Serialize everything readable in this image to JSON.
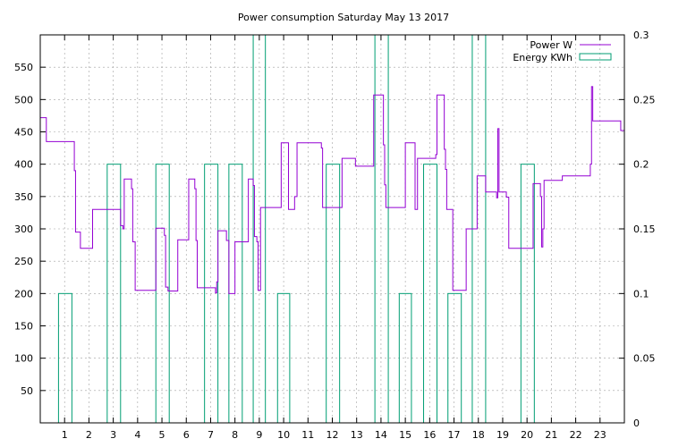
{
  "chart_data": {
    "type": "line",
    "title": "Power consumption Saturday May 13 2017",
    "xlabel": "",
    "ylabel": "",
    "y2label": "",
    "xlim": [
      0,
      24
    ],
    "ylim": [
      0,
      600
    ],
    "y2lim": [
      0,
      0.3
    ],
    "x_ticks": [
      1,
      2,
      3,
      4,
      5,
      6,
      7,
      8,
      9,
      10,
      11,
      12,
      13,
      14,
      15,
      16,
      17,
      18,
      19,
      20,
      21,
      22,
      23
    ],
    "y_ticks": [
      50,
      100,
      150,
      200,
      250,
      300,
      350,
      400,
      450,
      500,
      550
    ],
    "y2_ticks": [
      0,
      0.05,
      0.1,
      0.15,
      0.2,
      0.25,
      0.3
    ],
    "y2_tick_labels": [
      "0",
      "0.05",
      "0.1",
      "0.15",
      "0.2",
      "0.25",
      "0.3"
    ],
    "grid": true,
    "legend_position": "top-right",
    "colors": {
      "power": "#9400d3",
      "energy": "#009e73"
    },
    "series": [
      {
        "name": "Power W",
        "axis": "left",
        "style": "step",
        "points": [
          [
            0.0,
            472
          ],
          [
            0.25,
            472
          ],
          [
            0.25,
            435
          ],
          [
            1.4,
            435
          ],
          [
            1.4,
            390
          ],
          [
            1.45,
            390
          ],
          [
            1.45,
            295
          ],
          [
            1.65,
            295
          ],
          [
            1.65,
            270
          ],
          [
            2.15,
            270
          ],
          [
            2.15,
            330
          ],
          [
            3.3,
            330
          ],
          [
            3.3,
            305
          ],
          [
            3.4,
            305
          ],
          [
            3.4,
            300
          ],
          [
            3.45,
            300
          ],
          [
            3.45,
            377
          ],
          [
            3.75,
            377
          ],
          [
            3.75,
            362
          ],
          [
            3.8,
            362
          ],
          [
            3.8,
            280
          ],
          [
            3.9,
            280
          ],
          [
            3.9,
            205
          ],
          [
            4.75,
            205
          ],
          [
            4.75,
            301
          ],
          [
            5.1,
            301
          ],
          [
            5.1,
            290
          ],
          [
            5.15,
            290
          ],
          [
            5.15,
            210
          ],
          [
            5.25,
            210
          ],
          [
            5.25,
            204
          ],
          [
            5.65,
            204
          ],
          [
            5.65,
            283
          ],
          [
            6.1,
            283
          ],
          [
            6.1,
            377
          ],
          [
            6.35,
            377
          ],
          [
            6.35,
            362
          ],
          [
            6.4,
            362
          ],
          [
            6.4,
            282
          ],
          [
            6.45,
            282
          ],
          [
            6.45,
            209
          ],
          [
            7.2,
            209
          ],
          [
            7.2,
            201
          ],
          [
            7.25,
            201
          ],
          [
            7.25,
            218
          ],
          [
            7.3,
            218
          ],
          [
            7.3,
            297
          ],
          [
            7.65,
            297
          ],
          [
            7.65,
            282
          ],
          [
            7.75,
            282
          ],
          [
            7.75,
            200
          ],
          [
            8.0,
            200
          ],
          [
            8.0,
            280
          ],
          [
            8.55,
            280
          ],
          [
            8.55,
            377
          ],
          [
            8.75,
            377
          ],
          [
            8.75,
            367
          ],
          [
            8.8,
            367
          ],
          [
            8.8,
            288
          ],
          [
            8.9,
            288
          ],
          [
            8.9,
            280
          ],
          [
            8.95,
            280
          ],
          [
            8.95,
            205
          ],
          [
            9.05,
            205
          ],
          [
            9.05,
            333
          ],
          [
            9.9,
            333
          ],
          [
            9.9,
            433
          ],
          [
            10.2,
            433
          ],
          [
            10.2,
            330
          ],
          [
            10.45,
            330
          ],
          [
            10.45,
            350
          ],
          [
            10.55,
            350
          ],
          [
            10.55,
            433
          ],
          [
            11.55,
            433
          ],
          [
            11.55,
            425
          ],
          [
            11.6,
            425
          ],
          [
            11.6,
            333
          ],
          [
            12.4,
            333
          ],
          [
            12.4,
            409
          ],
          [
            12.95,
            409
          ],
          [
            12.95,
            397
          ],
          [
            13.7,
            397
          ],
          [
            13.7,
            507
          ],
          [
            14.1,
            507
          ],
          [
            14.1,
            430
          ],
          [
            14.15,
            430
          ],
          [
            14.15,
            368
          ],
          [
            14.2,
            368
          ],
          [
            14.2,
            333
          ],
          [
            15.0,
            333
          ],
          [
            15.0,
            433
          ],
          [
            15.4,
            433
          ],
          [
            15.4,
            330
          ],
          [
            15.5,
            330
          ],
          [
            15.5,
            409
          ],
          [
            16.25,
            409
          ],
          [
            16.25,
            415
          ],
          [
            16.3,
            415
          ],
          [
            16.3,
            507
          ],
          [
            16.6,
            507
          ],
          [
            16.6,
            423
          ],
          [
            16.65,
            423
          ],
          [
            16.65,
            392
          ],
          [
            16.7,
            392
          ],
          [
            16.7,
            330
          ],
          [
            16.95,
            330
          ],
          [
            16.95,
            205
          ],
          [
            17.5,
            205
          ],
          [
            17.5,
            300
          ],
          [
            17.95,
            300
          ],
          [
            17.95,
            382
          ],
          [
            18.3,
            382
          ],
          [
            18.3,
            357
          ],
          [
            18.75,
            357
          ],
          [
            18.75,
            348
          ],
          [
            18.8,
            348
          ],
          [
            18.8,
            455
          ],
          [
            18.85,
            455
          ],
          [
            18.85,
            357
          ],
          [
            19.15,
            357
          ],
          [
            19.15,
            349
          ],
          [
            19.25,
            349
          ],
          [
            19.25,
            270
          ],
          [
            20.25,
            270
          ],
          [
            20.25,
            370
          ],
          [
            20.55,
            370
          ],
          [
            20.55,
            350
          ],
          [
            20.6,
            350
          ],
          [
            20.6,
            272
          ],
          [
            20.65,
            272
          ],
          [
            20.65,
            300
          ],
          [
            20.7,
            300
          ],
          [
            20.7,
            375
          ],
          [
            21.45,
            375
          ],
          [
            21.45,
            382
          ],
          [
            22.6,
            382
          ],
          [
            22.6,
            400
          ],
          [
            22.65,
            400
          ],
          [
            22.65,
            520
          ],
          [
            22.7,
            520
          ],
          [
            22.7,
            467
          ],
          [
            23.85,
            467
          ],
          [
            23.85,
            452
          ],
          [
            24.0,
            452
          ]
        ]
      },
      {
        "name": "Energy KWh",
        "axis": "right",
        "style": "bars",
        "bars": [
          [
            0.75,
            1.3,
            0.1
          ],
          [
            2.75,
            3.3,
            0.2
          ],
          [
            4.75,
            5.3,
            0.2
          ],
          [
            6.75,
            7.3,
            0.2
          ],
          [
            7.75,
            8.3,
            0.2
          ],
          [
            8.75,
            9.25,
            0.3
          ],
          [
            9.75,
            10.25,
            0.1
          ],
          [
            11.75,
            12.3,
            0.2
          ],
          [
            13.75,
            14.3,
            0.3
          ],
          [
            14.75,
            15.25,
            0.1
          ],
          [
            15.75,
            16.3,
            0.2
          ],
          [
            16.75,
            17.3,
            0.1
          ],
          [
            17.75,
            18.3,
            0.3
          ],
          [
            19.75,
            20.3,
            0.2
          ]
        ]
      }
    ]
  }
}
